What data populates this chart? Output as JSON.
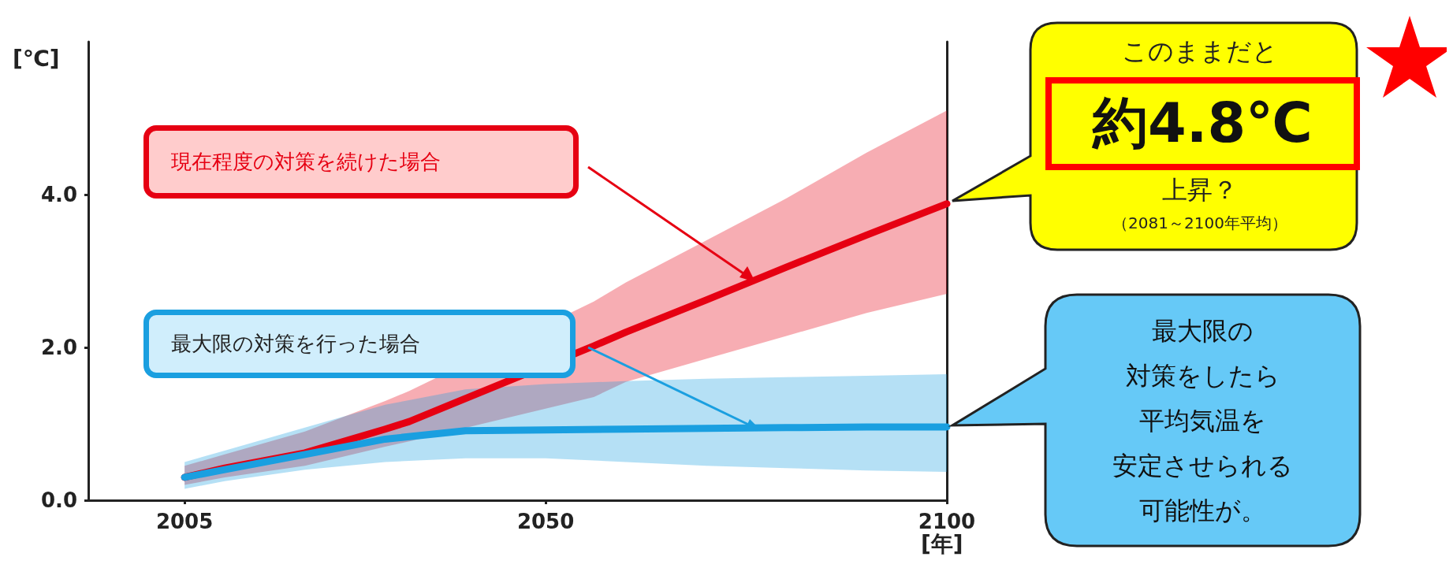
{
  "chart_data": {
    "type": "line",
    "xlabel": "[年]",
    "ylabel": "[℃]",
    "x": [
      2005,
      2010,
      2020,
      2030,
      2040,
      2050,
      2060,
      2070,
      2080,
      2090,
      2100
    ],
    "series": [
      {
        "name": "現在程度の対策を続けた場合",
        "color": "#e60012",
        "x": [
          2005,
          2010,
          2020,
          2030,
          2033,
          2056,
          2060,
          2070,
          2080,
          2090,
          2100
        ],
        "values": [
          0.3,
          0.42,
          0.62,
          0.93,
          1.03,
          2.02,
          2.2,
          2.62,
          3.05,
          3.47,
          3.88
        ],
        "lower": [
          0.2,
          0.3,
          0.45,
          0.7,
          0.77,
          1.35,
          1.55,
          1.85,
          2.15,
          2.45,
          2.7
        ],
        "upper": [
          0.45,
          0.6,
          0.9,
          1.3,
          1.43,
          2.6,
          2.85,
          3.4,
          3.95,
          4.55,
          5.1
        ]
      },
      {
        "name": "最大限の対策を行った場合",
        "color": "#1a9fe0",
        "values": [
          0.3,
          0.4,
          0.6,
          0.8,
          0.91,
          0.92,
          0.93,
          0.94,
          0.95,
          0.96,
          0.96
        ],
        "lower": [
          0.15,
          0.25,
          0.4,
          0.5,
          0.55,
          0.55,
          0.5,
          0.45,
          0.42,
          0.39,
          0.37
        ],
        "upper": [
          0.5,
          0.65,
          0.95,
          1.25,
          1.45,
          1.52,
          1.56,
          1.59,
          1.61,
          1.63,
          1.65
        ]
      }
    ],
    "xlim": [
      1993,
      2100
    ],
    "xticks": [
      2005,
      2050,
      2100
    ],
    "ylim": [
      0,
      6
    ],
    "yticks": [
      {
        "value": 0,
        "label": "0.0"
      },
      {
        "value": 2,
        "label": "2.0"
      },
      {
        "value": 4,
        "label": "4.0"
      }
    ],
    "grid": false,
    "legend": false,
    "line_style": "solid",
    "annotations": [
      "このままだと",
      "約4.8℃",
      "上昇？",
      "（2081～2100年平均）",
      "最大限の",
      "対策をしたら",
      "平均気温を",
      "安定させられる",
      "可能性が。"
    ]
  }
}
